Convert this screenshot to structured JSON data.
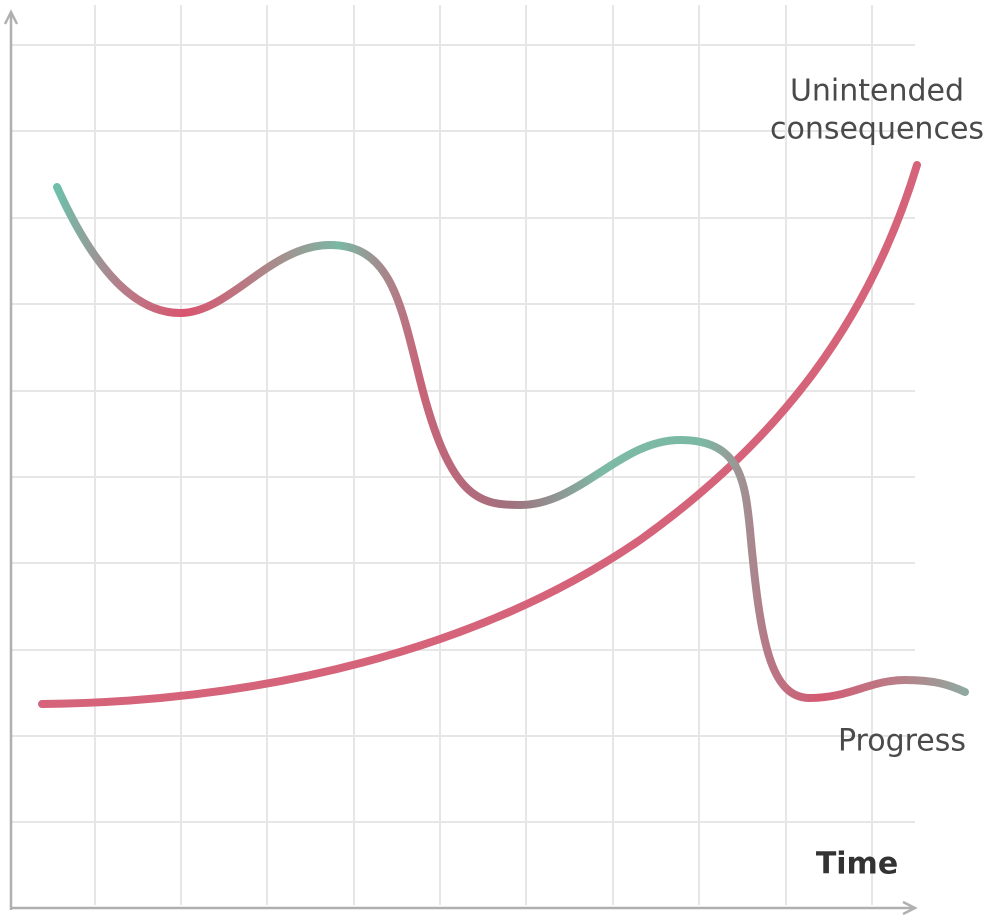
{
  "labels": {
    "unintended": [
      "Unintended",
      "consequences"
    ],
    "progress": "Progress",
    "x_axis": "Time"
  }
}
